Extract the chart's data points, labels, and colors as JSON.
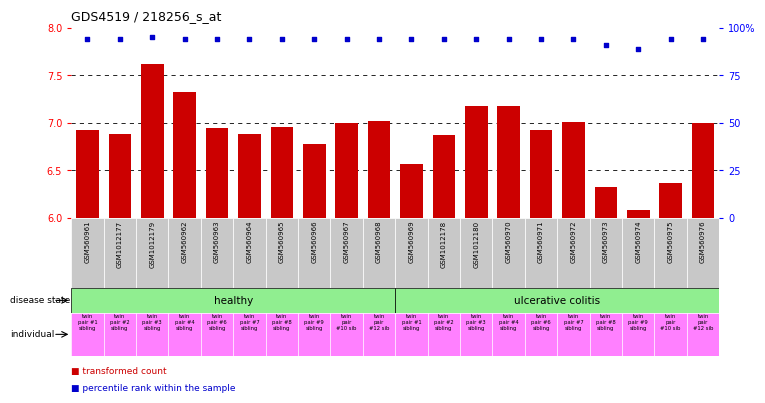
{
  "title": "GDS4519 / 218256_s_at",
  "samples": [
    "GSM560961",
    "GSM1012177",
    "GSM1012179",
    "GSM560962",
    "GSM560963",
    "GSM560964",
    "GSM560965",
    "GSM560966",
    "GSM560967",
    "GSM560968",
    "GSM560969",
    "GSM1012178",
    "GSM1012180",
    "GSM560970",
    "GSM560971",
    "GSM560972",
    "GSM560973",
    "GSM560974",
    "GSM560975",
    "GSM560976"
  ],
  "bar_values": [
    6.93,
    6.88,
    7.62,
    7.32,
    6.95,
    6.88,
    6.96,
    6.78,
    7.0,
    7.02,
    6.57,
    6.87,
    7.18,
    7.18,
    6.93,
    7.01,
    6.33,
    6.08,
    6.37,
    7.0
  ],
  "percentile_y_left": [
    7.88,
    7.88,
    7.9,
    7.88,
    7.88,
    7.88,
    7.88,
    7.88,
    7.88,
    7.88,
    7.88,
    7.88,
    7.88,
    7.88,
    7.88,
    7.88,
    7.82,
    7.78,
    7.88,
    7.88
  ],
  "bar_color": "#cc0000",
  "dot_color": "#0000cc",
  "ylim_left": [
    6.0,
    8.0
  ],
  "yticks_left": [
    6.0,
    6.5,
    7.0,
    7.5,
    8.0
  ],
  "ytick_labels_right": [
    "0",
    "25",
    "50",
    "75",
    "100%"
  ],
  "yticks_right": [
    0,
    25,
    50,
    75,
    100
  ],
  "gridlines": [
    6.5,
    7.0,
    7.5
  ],
  "healthy_count": 10,
  "disease_state_healthy": "healthy",
  "disease_state_colitis": "ulcerative colitis",
  "individual_labels": [
    "twin\npair #1\nsibling",
    "twin\npair #2\nsibling",
    "twin\npair #3\nsibling",
    "twin\npair #4\nsibling",
    "twin\npair #6\nsibling",
    "twin\npair #7\nsibling",
    "twin\npair #8\nsibling",
    "twin\npair #9\nsibling",
    "twin\npair\n#10 sib",
    "twin\npair\n#12 sib",
    "twin\npair #1\nsibling",
    "twin\npair #2\nsibling",
    "twin\npair #3\nsibling",
    "twin\npair #4\nsibling",
    "twin\npair #6\nsibling",
    "twin\npair #7\nsibling",
    "twin\npair #8\nsibling",
    "twin\npair #9\nsibling",
    "twin\npair\n#10 sib",
    "twin\npair\n#12 sib"
  ],
  "healthy_bg": "#90ee90",
  "individual_bg": "#ff80ff",
  "legend_bar_label": "transformed count",
  "legend_dot_label": "percentile rank within the sample",
  "disease_state_label": "disease state",
  "individual_row_label": "individual",
  "xticklabels_bg": "#c8c8c8",
  "bg_color": "#ffffff"
}
